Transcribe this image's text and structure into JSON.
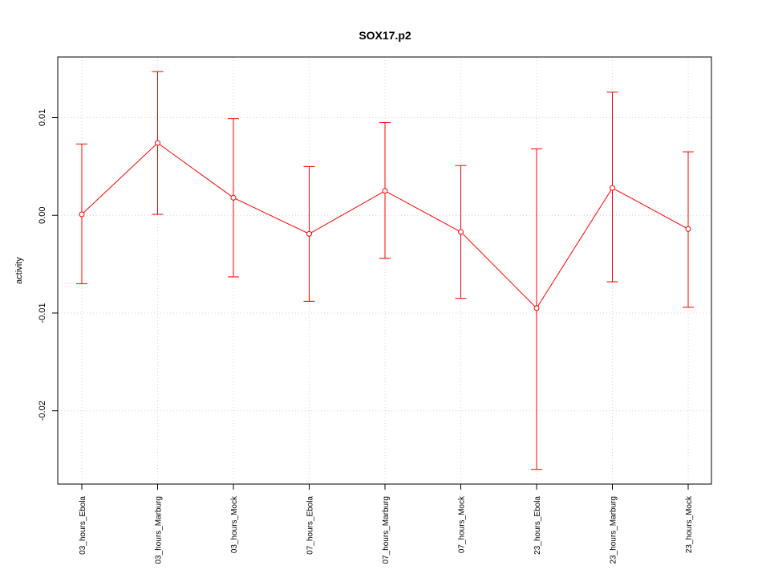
{
  "chart_data": {
    "type": "line",
    "title": "SOX17.p2",
    "xlabel": "",
    "ylabel": "activity",
    "categories": [
      "03_hours_Ebola",
      "03_hours_Marburg",
      "03_hours_Mock",
      "07_hours_Ebola",
      "07_hours_Marburg",
      "07_hours_Mock",
      "23_hours_Ebola",
      "23_hours_Marburg",
      "23_hours_Mock"
    ],
    "series": [
      {
        "values": [
          0.0001,
          0.0074,
          0.0018,
          -0.0019,
          0.0025,
          -0.0017,
          -0.0095,
          0.0028,
          -0.0014
        ],
        "lower": [
          -0.007,
          0.0001,
          -0.0063,
          -0.0088,
          -0.0044,
          -0.0085,
          -0.026,
          -0.0068,
          -0.0094
        ],
        "upper": [
          0.0073,
          0.0147,
          0.0099,
          0.005,
          0.0095,
          0.0051,
          0.0068,
          0.0126,
          0.0065
        ],
        "color": "#ff0000"
      }
    ],
    "yticks": [
      -0.02,
      -0.01,
      0.0,
      0.01
    ],
    "ytick_labels": [
      "-0.02",
      "-0.01",
      "0.00",
      "0.01"
    ],
    "ylim": [
      -0.0275,
      0.0162
    ],
    "grid": true,
    "grid_color": "#d3d3d3",
    "legend": "none"
  }
}
